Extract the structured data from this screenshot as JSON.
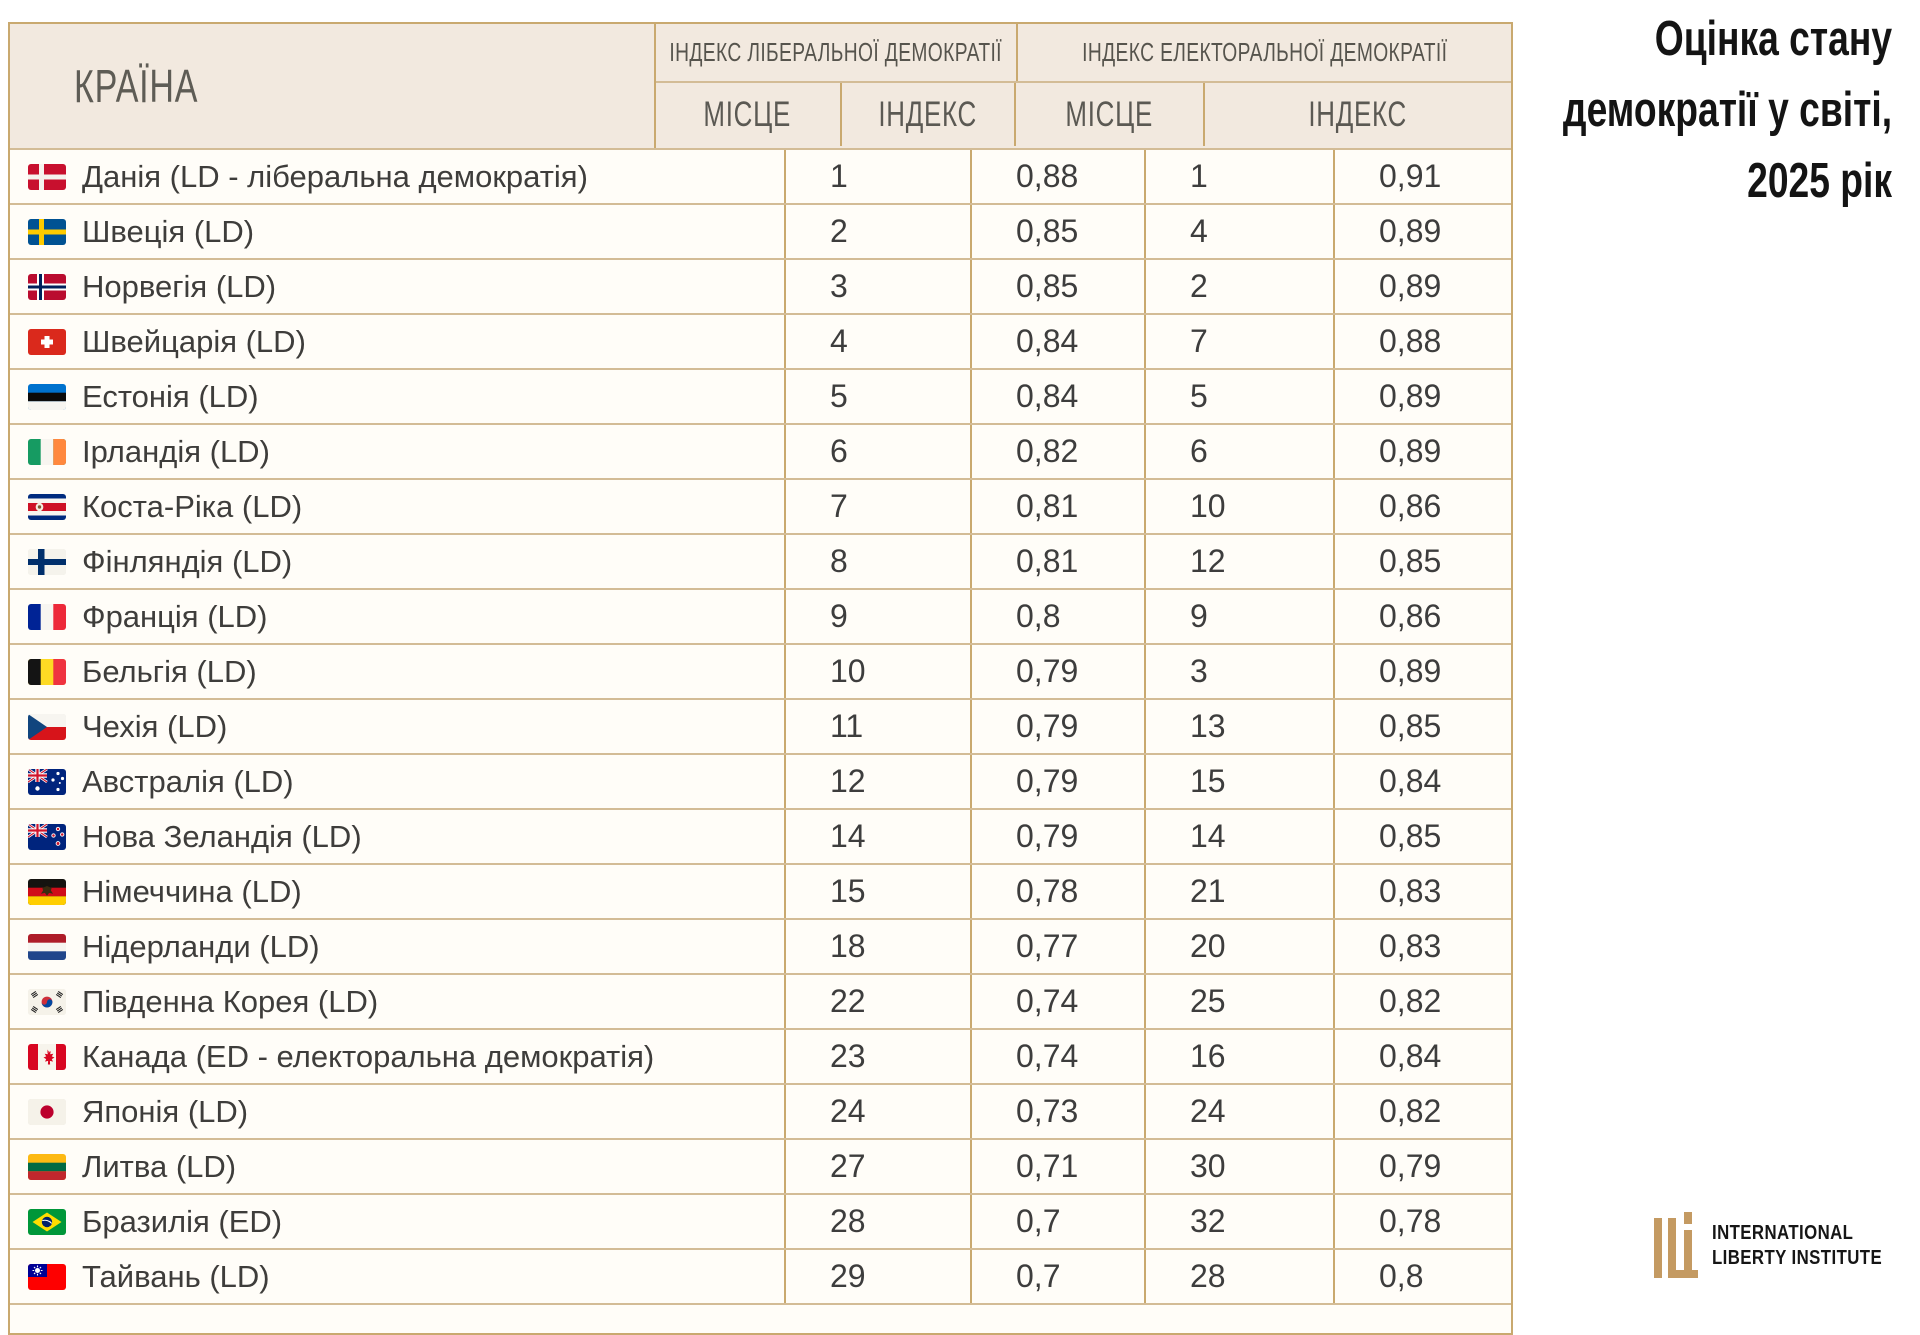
{
  "title": {
    "lines": [
      "Оцінка стану",
      "демократії у світі,",
      "2025 рік"
    ]
  },
  "table": {
    "country_header": "КРАЇНА",
    "group_headers": [
      "ІНДЕКС ЛІБЕРАЛЬНОЇ ДЕМОКРАТІЇ",
      "ІНДЕКС ЕЛЕКТОРАЛЬНОЇ ДЕМОКРАТІЇ"
    ],
    "sub_headers": [
      "МІСЦЕ",
      "ІНДЕКС",
      "МІСЦЕ",
      "ІНДЕКС"
    ],
    "rows": [
      {
        "flag": "dk",
        "country": "Данія (LD - ліберальна демократія)",
        "ld_place": "1",
        "ld_index": "0,88",
        "ed_place": "1",
        "ed_index": "0,91"
      },
      {
        "flag": "se",
        "country": "Швеція (LD)",
        "ld_place": "2",
        "ld_index": "0,85",
        "ed_place": "4",
        "ed_index": "0,89"
      },
      {
        "flag": "no",
        "country": "Норвегія (LD)",
        "ld_place": "3",
        "ld_index": "0,85",
        "ed_place": "2",
        "ed_index": "0,89"
      },
      {
        "flag": "ch",
        "country": "Швейцарія (LD)",
        "ld_place": "4",
        "ld_index": "0,84",
        "ed_place": "7",
        "ed_index": "0,88"
      },
      {
        "flag": "ee",
        "country": "Естонія (LD)",
        "ld_place": "5",
        "ld_index": "0,84",
        "ed_place": "5",
        "ed_index": "0,89"
      },
      {
        "flag": "ie",
        "country": "Ірландія (LD)",
        "ld_place": "6",
        "ld_index": "0,82",
        "ed_place": "6",
        "ed_index": "0,89"
      },
      {
        "flag": "cr",
        "country": "Коста-Ріка (LD)",
        "ld_place": "7",
        "ld_index": "0,81",
        "ed_place": "10",
        "ed_index": "0,86"
      },
      {
        "flag": "fi",
        "country": "Фінляндія (LD)",
        "ld_place": "8",
        "ld_index": "0,81",
        "ed_place": "12",
        "ed_index": "0,85"
      },
      {
        "flag": "fr",
        "country": "Франція (LD)",
        "ld_place": "9",
        "ld_index": "0,8",
        "ed_place": "9",
        "ed_index": "0,86"
      },
      {
        "flag": "be",
        "country": "Бельгія (LD)",
        "ld_place": "10",
        "ld_index": "0,79",
        "ed_place": "3",
        "ed_index": "0,89"
      },
      {
        "flag": "cz",
        "country": "Чехія (LD)",
        "ld_place": "11",
        "ld_index": "0,79",
        "ed_place": "13",
        "ed_index": "0,85"
      },
      {
        "flag": "au",
        "country": "Австралія (LD)",
        "ld_place": "12",
        "ld_index": "0,79",
        "ed_place": "15",
        "ed_index": "0,84"
      },
      {
        "flag": "nz",
        "country": "Нова Зеландія (LD)",
        "ld_place": "14",
        "ld_index": "0,79",
        "ed_place": "14",
        "ed_index": "0,85"
      },
      {
        "flag": "de",
        "country": "Німеччина (LD)",
        "ld_place": "15",
        "ld_index": "0,78",
        "ed_place": "21",
        "ed_index": "0,83"
      },
      {
        "flag": "nl",
        "country": "Нідерланди (LD)",
        "ld_place": "18",
        "ld_index": "0,77",
        "ed_place": "20",
        "ed_index": "0,83"
      },
      {
        "flag": "kr",
        "country": "Південна Корея (LD)",
        "ld_place": "22",
        "ld_index": "0,74",
        "ed_place": "25",
        "ed_index": "0,82"
      },
      {
        "flag": "ca",
        "country": "Канада (ED - електоральна демократія)",
        "ld_place": "23",
        "ld_index": "0,74",
        "ed_place": "16",
        "ed_index": "0,84"
      },
      {
        "flag": "jp",
        "country": "Японія (LD)",
        "ld_place": "24",
        "ld_index": "0,73",
        "ed_place": "24",
        "ed_index": "0,82"
      },
      {
        "flag": "lt",
        "country": "Литва (LD)",
        "ld_place": "27",
        "ld_index": "0,71",
        "ed_place": "30",
        "ed_index": "0,79"
      },
      {
        "flag": "br",
        "country": "Бразилія (ED)",
        "ld_place": "28",
        "ld_index": "0,7",
        "ed_place": "32",
        "ed_index": "0,78"
      },
      {
        "flag": "tw",
        "country": "Тайвань (LD)",
        "ld_place": "29",
        "ld_index": "0,7",
        "ed_place": "28",
        "ed_index": "0,8"
      }
    ]
  },
  "logo": {
    "lines": [
      "INTERNATIONAL",
      "LIBERTY INSTITUTE"
    ]
  },
  "colors": {
    "header_bg": "#f2e9df",
    "row_bg": "#fffdf8",
    "line": "#c9a96f",
    "line_light": "#d3bc96",
    "header_text": "#56544d",
    "country_text": "#3e3d3b",
    "number_text": "#3d3d3d",
    "title_text": "#141414",
    "logo_gold": "#c49a62",
    "logo_text": "#161616"
  },
  "chart_data": {
    "type": "table",
    "title": "Оцінка стану демократії у світі, 2025 рік",
    "columns": [
      "Країна",
      "Індекс ліберальної демократії — місце",
      "Індекс ліберальної демократії — індекс",
      "Індекс електоральної демократії — місце",
      "Індекс електоральної демократії — індекс"
    ],
    "rows": [
      [
        "Данія (LD - ліберальна демократія)",
        1,
        0.88,
        1,
        0.91
      ],
      [
        "Швеція (LD)",
        2,
        0.85,
        4,
        0.89
      ],
      [
        "Норвегія (LD)",
        3,
        0.85,
        2,
        0.89
      ],
      [
        "Швейцарія (LD)",
        4,
        0.84,
        7,
        0.88
      ],
      [
        "Естонія (LD)",
        5,
        0.84,
        5,
        0.89
      ],
      [
        "Ірландія (LD)",
        6,
        0.82,
        6,
        0.89
      ],
      [
        "Коста-Ріка (LD)",
        7,
        0.81,
        10,
        0.86
      ],
      [
        "Фінляндія (LD)",
        8,
        0.81,
        12,
        0.85
      ],
      [
        "Франція (LD)",
        9,
        0.8,
        9,
        0.86
      ],
      [
        "Бельгія (LD)",
        10,
        0.79,
        3,
        0.89
      ],
      [
        "Чехія (LD)",
        11,
        0.79,
        13,
        0.85
      ],
      [
        "Австралія (LD)",
        12,
        0.79,
        15,
        0.84
      ],
      [
        "Нова Зеландія (LD)",
        14,
        0.79,
        14,
        0.85
      ],
      [
        "Німеччина (LD)",
        15,
        0.78,
        21,
        0.83
      ],
      [
        "Нідерланди (LD)",
        18,
        0.77,
        20,
        0.83
      ],
      [
        "Південна Корея (LD)",
        22,
        0.74,
        25,
        0.82
      ],
      [
        "Канада (ED - електоральна демократія)",
        23,
        0.74,
        16,
        0.84
      ],
      [
        "Японія (LD)",
        24,
        0.73,
        24,
        0.82
      ],
      [
        "Литва (LD)",
        27,
        0.71,
        30,
        0.79
      ],
      [
        "Бразилія (ED)",
        28,
        0.7,
        32,
        0.78
      ],
      [
        "Тайвань (LD)",
        29,
        0.7,
        28,
        0.8
      ]
    ]
  }
}
